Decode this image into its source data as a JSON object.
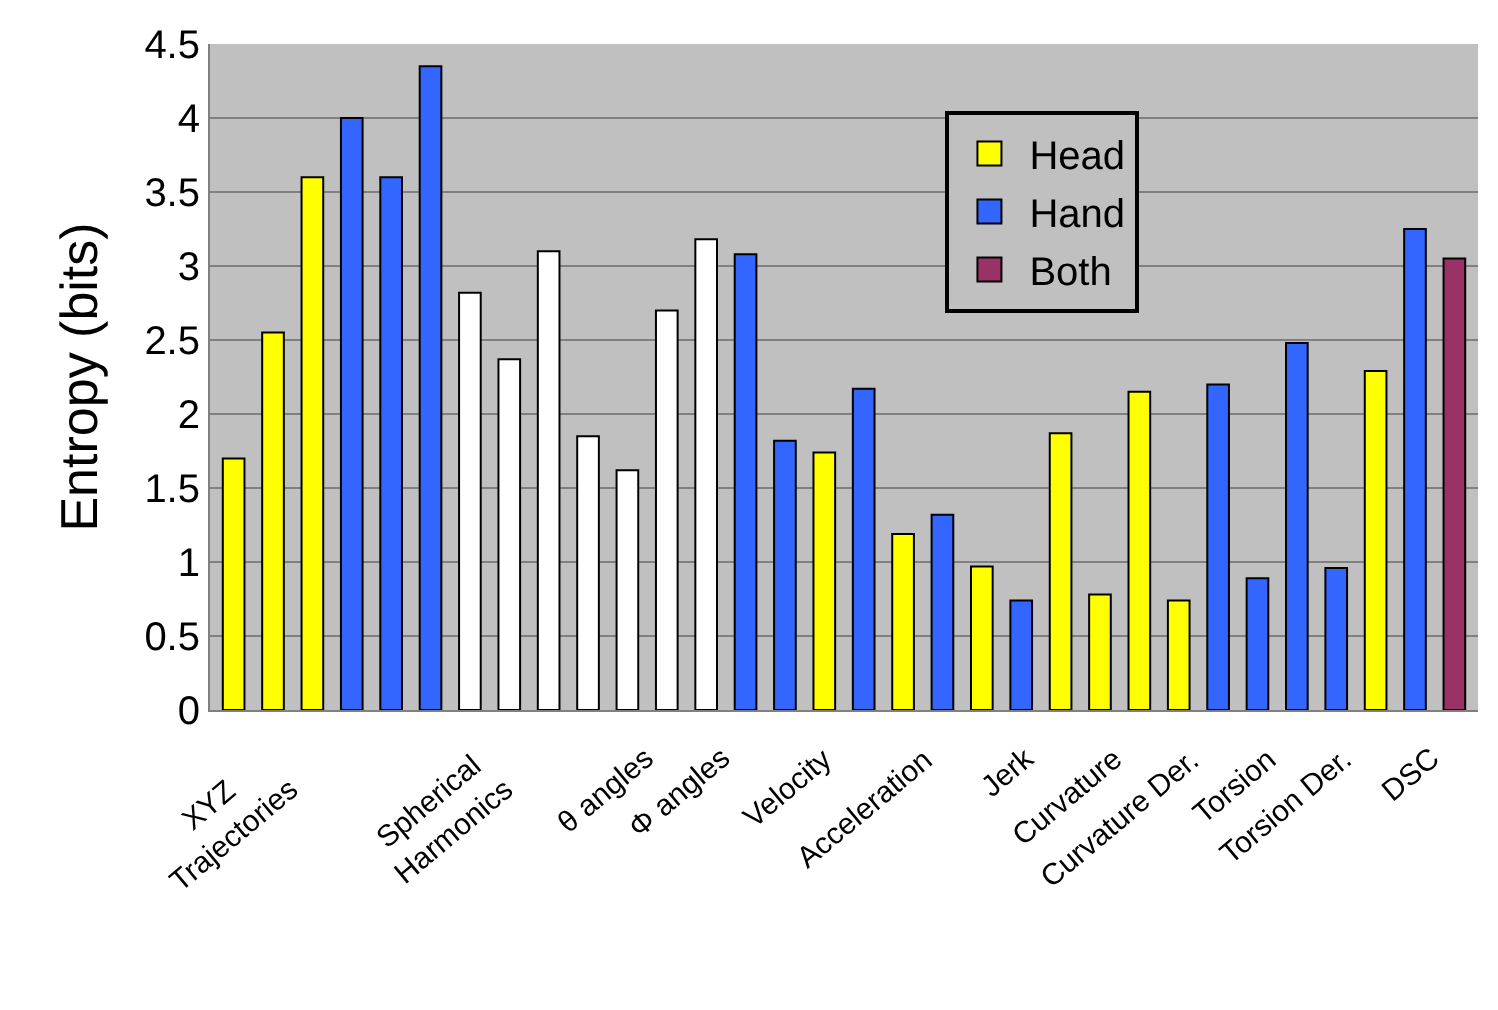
{
  "chart_data": {
    "type": "bar",
    "ylabel": "Entropy (bits)",
    "categories": [
      null,
      null,
      null,
      null,
      null,
      null,
      null,
      null,
      null,
      null,
      null,
      null,
      null,
      null,
      null,
      null,
      null,
      null,
      null,
      null,
      null,
      null,
      null,
      null,
      null,
      null,
      null,
      null,
      null,
      null,
      null,
      null
    ],
    "series": [
      {
        "name": "Head",
        "color": "#ffff00",
        "values": [
          1.7,
          2.55,
          3.6,
          null,
          null,
          null,
          null,
          null,
          null,
          null,
          null,
          null,
          null,
          null,
          null,
          1.74,
          null,
          1.19,
          null,
          0.97,
          null,
          1.87,
          0.78,
          2.15,
          0.74,
          null,
          null,
          null,
          null,
          2.29,
          null,
          null
        ]
      },
      {
        "name": "Hand",
        "color": "#3366ff",
        "values": [
          null,
          null,
          null,
          4.0,
          3.6,
          4.35,
          null,
          null,
          null,
          null,
          null,
          null,
          null,
          3.08,
          1.82,
          null,
          2.17,
          null,
          1.32,
          null,
          0.74,
          null,
          null,
          null,
          null,
          2.2,
          0.89,
          2.48,
          0.96,
          null,
          3.25,
          null
        ]
      },
      {
        "name": "Both",
        "color": "#993366",
        "values": [
          null,
          null,
          null,
          null,
          null,
          null,
          null,
          null,
          null,
          null,
          null,
          null,
          null,
          null,
          null,
          null,
          null,
          null,
          null,
          null,
          null,
          null,
          null,
          null,
          null,
          null,
          null,
          null,
          null,
          null,
          null,
          3.05
        ]
      },
      {
        "color": "#ffffff",
        "values": [
          null,
          null,
          null,
          null,
          null,
          null,
          2.82,
          2.37,
          3.1,
          1.85,
          1.62,
          2.7,
          3.18,
          null,
          null,
          null,
          null,
          null,
          null,
          null,
          null,
          null,
          null,
          null,
          null,
          null,
          null,
          null,
          null,
          null,
          null,
          null
        ]
      }
    ],
    "ylim": [
      0,
      4.5
    ],
    "yticks": [
      0,
      0.5,
      1,
      1.5,
      2,
      2.5,
      3,
      3.5,
      4,
      4.5
    ],
    "grid": "y",
    "legend": "top",
    "annotations": [
      "XYZ\nTrajectories",
      "Spherical\nHarmonics",
      "θ angles",
      "Φ angles",
      "Velocity",
      "Acceleration",
      "Jerk",
      "Curvature",
      "Curvature Der.",
      "Torsion",
      "Torsion Der.",
      "DSC"
    ]
  }
}
